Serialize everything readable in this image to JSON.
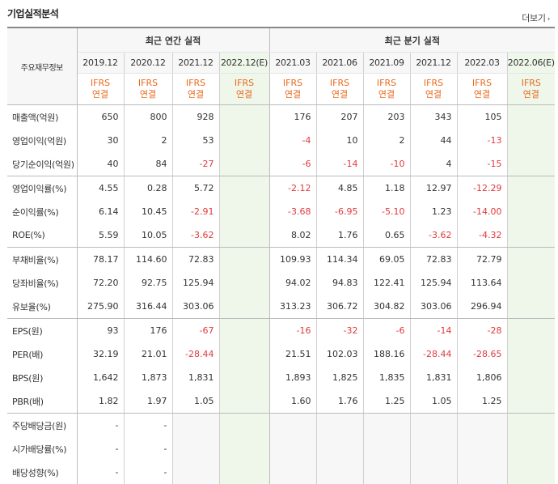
{
  "title": "기업실적분석",
  "more_label": "더보기",
  "header": {
    "row_label": "주요재무정보",
    "annual_label": "최근 연간 실적",
    "quarter_label": "최근 분기 실적",
    "periods": [
      "2019.12",
      "2020.12",
      "2021.12",
      "2022.12(E)",
      "2021.03",
      "2021.06",
      "2021.09",
      "2021.12",
      "2022.03",
      "2022.06(E)"
    ],
    "ifrs": [
      "IFRS",
      "IFRS",
      "IFRS",
      "IFRS",
      "IFRS",
      "IFRS",
      "IFRS",
      "IFRS",
      "IFRS",
      "IFRS"
    ],
    "basis": [
      "연결",
      "연결",
      "연결",
      "연결",
      "연결",
      "연결",
      "연결",
      "연결",
      "연결",
      "연결"
    ]
  },
  "rows": [
    {
      "label": "매출액(억원)",
      "values": [
        "650",
        "800",
        "928",
        "",
        "176",
        "207",
        "203",
        "343",
        "105",
        ""
      ]
    },
    {
      "label": "영업이익(억원)",
      "values": [
        "30",
        "2",
        "53",
        "",
        "-4",
        "10",
        "2",
        "44",
        "-13",
        ""
      ]
    },
    {
      "label": "당기순이익(억원)",
      "values": [
        "40",
        "84",
        "-27",
        "",
        "-6",
        "-14",
        "-10",
        "4",
        "-15",
        ""
      ]
    },
    {
      "label": "영업이익률(%)",
      "values": [
        "4.55",
        "0.28",
        "5.72",
        "",
        "-2.12",
        "4.85",
        "1.18",
        "12.97",
        "-12.29",
        ""
      ]
    },
    {
      "label": "순이익률(%)",
      "values": [
        "6.14",
        "10.45",
        "-2.91",
        "",
        "-3.68",
        "-6.95",
        "-5.10",
        "1.23",
        "-14.00",
        ""
      ]
    },
    {
      "label": "ROE(%)",
      "values": [
        "5.59",
        "10.05",
        "-3.62",
        "",
        "8.02",
        "1.76",
        "0.65",
        "-3.62",
        "-4.32",
        ""
      ]
    },
    {
      "label": "부채비율(%)",
      "values": [
        "78.17",
        "114.60",
        "72.83",
        "",
        "109.93",
        "114.34",
        "69.05",
        "72.83",
        "72.79",
        ""
      ]
    },
    {
      "label": "당좌비율(%)",
      "values": [
        "72.20",
        "92.75",
        "125.94",
        "",
        "94.02",
        "94.83",
        "122.41",
        "125.94",
        "113.64",
        ""
      ]
    },
    {
      "label": "유보율(%)",
      "values": [
        "275.90",
        "316.44",
        "303.06",
        "",
        "313.23",
        "306.72",
        "304.82",
        "303.06",
        "296.94",
        ""
      ]
    },
    {
      "label": "EPS(원)",
      "values": [
        "93",
        "176",
        "-67",
        "",
        "-16",
        "-32",
        "-6",
        "-14",
        "-28",
        ""
      ]
    },
    {
      "label": "PER(배)",
      "values": [
        "32.19",
        "21.01",
        "-28.44",
        "",
        "21.51",
        "102.03",
        "188.16",
        "-28.44",
        "-28.65",
        ""
      ]
    },
    {
      "label": "BPS(원)",
      "values": [
        "1,642",
        "1,873",
        "1,831",
        "",
        "1,893",
        "1,825",
        "1,835",
        "1,831",
        "1,806",
        ""
      ]
    },
    {
      "label": "PBR(배)",
      "values": [
        "1.82",
        "1.97",
        "1.05",
        "",
        "1.60",
        "1.76",
        "1.25",
        "1.05",
        "1.25",
        ""
      ]
    },
    {
      "label": "주당배당금(원)",
      "values": [
        "-",
        "-",
        "",
        "",
        "",
        "",
        "",
        "",
        "",
        ""
      ]
    },
    {
      "label": "시가배당률(%)",
      "values": [
        "-",
        "-",
        "",
        "",
        "",
        "",
        "",
        "",
        "",
        ""
      ]
    },
    {
      "label": "배당성향(%)",
      "values": [
        "-",
        "-",
        "",
        "",
        "",
        "",
        "",
        "",
        "",
        ""
      ]
    }
  ],
  "colors": {
    "negative": "#e03a3e",
    "ifrs": "#e96a1f",
    "estimate_bg": "#eef7ea",
    "header_bg": "#f7f7f7"
  }
}
